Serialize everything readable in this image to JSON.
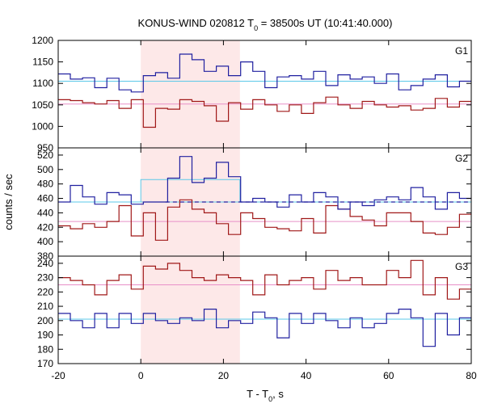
{
  "chart_data": {
    "type": "line",
    "title": {
      "prefix": "KONUS-WIND 020812 T",
      "subscript": "0",
      "suffix": " = 38500s UT (10:41:40.000)"
    },
    "xlabel": {
      "prefix": "T - T",
      "subscript": "0",
      "suffix": ", s"
    },
    "ylabel": "counts / sec",
    "xlim": [
      -20,
      80
    ],
    "x_ticks": [
      "-20",
      "0",
      "20",
      "40",
      "60",
      "80"
    ],
    "highlight_region": {
      "x_start": 0,
      "x_end": 24,
      "color": "#fde8e8"
    },
    "bin_width": 2.944,
    "colors": {
      "blue": "#2020a0",
      "red": "#a01818",
      "blue_fit": "#5bc8e8",
      "red_fit": "#e890c8"
    },
    "panels": [
      {
        "label": "G1",
        "ylim": [
          950,
          1200
        ],
        "y_ticks": [
          "950",
          "1000",
          "1050",
          "1100",
          "1150",
          "1200"
        ],
        "blue_background": 1105,
        "red_background": 1052,
        "blue_counts": [
          1122,
          1110,
          1113,
          1090,
          1112,
          1085,
          1080,
          1118,
          1125,
          1112,
          1168,
          1155,
          1128,
          1140,
          1118,
          1150,
          1128,
          1090,
          1115,
          1118,
          1110,
          1128,
          1095,
          1120,
          1110,
          1115,
          1100,
          1122,
          1085,
          1095,
          1110,
          1120,
          1092,
          1105,
          1118,
          1085
        ],
        "red_counts": [
          1062,
          1060,
          1055,
          1052,
          1060,
          1042,
          1062,
          998,
          1042,
          1040,
          1062,
          1058,
          1048,
          1012,
          1055,
          1040,
          1062,
          1050,
          1035,
          1050,
          1030,
          1055,
          1068,
          1050,
          1042,
          1058,
          1050,
          1045,
          1048,
          1038,
          1042,
          1065,
          1045,
          1058,
          1075,
          1068
        ]
      },
      {
        "label": "G2",
        "ylim": [
          380,
          530
        ],
        "y_ticks": [
          "380",
          "400",
          "420",
          "440",
          "460",
          "480",
          "500",
          "520"
        ],
        "blue_background": 455,
        "blue_burst_level": 486,
        "dashed_level": 455,
        "red_background": 428,
        "blue_counts": [
          455,
          478,
          462,
          452,
          468,
          465,
          452,
          455,
          455,
          488,
          518,
          482,
          488,
          510,
          490,
          455,
          460,
          455,
          448,
          465,
          455,
          468,
          462,
          445,
          455,
          450,
          458,
          462,
          458,
          475,
          462,
          445,
          468,
          460,
          452,
          448
        ],
        "red_counts": [
          422,
          418,
          425,
          420,
          428,
          450,
          408,
          440,
          402,
          448,
          458,
          445,
          440,
          425,
          410,
          440,
          432,
          420,
          418,
          415,
          432,
          412,
          450,
          445,
          435,
          430,
          422,
          440,
          440,
          428,
          412,
          410,
          420,
          438,
          430,
          420
        ]
      },
      {
        "label": "G3",
        "ylim": [
          170,
          245
        ],
        "y_ticks": [
          "170",
          "180",
          "190",
          "200",
          "210",
          "220",
          "230",
          "240"
        ],
        "blue_background": 201,
        "red_background": 225,
        "blue_counts": [
          205,
          200,
          195,
          205,
          195,
          205,
          198,
          205,
          200,
          198,
          202,
          200,
          208,
          195,
          200,
          198,
          206,
          202,
          188,
          205,
          198,
          205,
          200,
          195,
          202,
          195,
          198,
          205,
          208,
          202,
          182,
          205,
          190,
          202,
          198,
          195
        ],
        "red_counts": [
          230,
          228,
          225,
          218,
          228,
          232,
          222,
          238,
          236,
          240,
          235,
          230,
          228,
          232,
          230,
          228,
          218,
          232,
          225,
          228,
          230,
          222,
          235,
          228,
          230,
          225,
          225,
          235,
          230,
          242,
          218,
          230,
          215,
          222,
          208,
          230
        ]
      }
    ]
  }
}
